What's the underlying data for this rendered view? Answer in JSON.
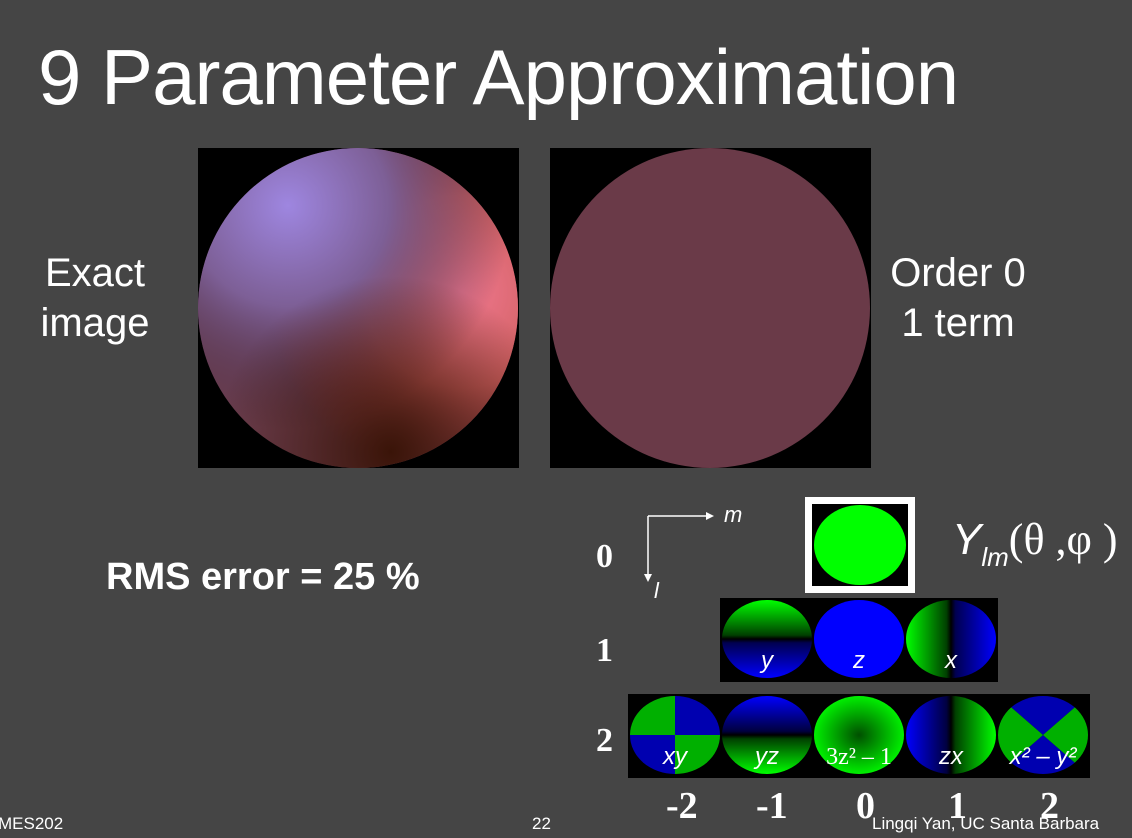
{
  "slide": {
    "title": "9 Parameter Approximation",
    "left_label": [
      "Exact",
      "image"
    ],
    "right_label": [
      "Order 0",
      "1 term"
    ],
    "rms_text": "RMS error = 25 %"
  },
  "sh_diagram": {
    "axis_m": "m",
    "axis_l": "l",
    "ylm_symbol": "Y",
    "ylm_subscript": "lm",
    "ylm_args": "(θ ,φ )",
    "row_labels": [
      "0",
      "1",
      "2"
    ],
    "col_labels": [
      "-2",
      "-1",
      "0",
      "1",
      "2"
    ],
    "band1": [
      "y",
      "z",
      "x"
    ],
    "band2": [
      "xy",
      "yz",
      "3z² – 1",
      "zx",
      "x² – y²"
    ]
  },
  "footer": {
    "course": "MES202",
    "page": "22",
    "author": "Lingqi Yan, UC Santa Barbara"
  },
  "colors": {
    "background": "#454545",
    "sh_positive": "#00ff00",
    "sh_negative": "#0000ff",
    "order0_fill": "#6a3a48"
  }
}
